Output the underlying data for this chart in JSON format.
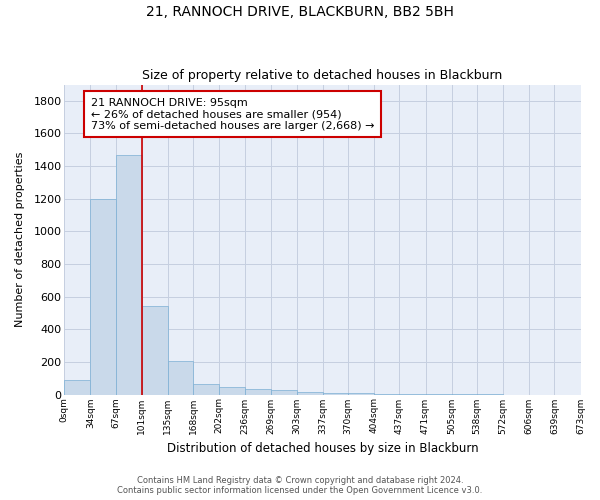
{
  "title1": "21, RANNOCH DRIVE, BLACKBURN, BB2 5BH",
  "title2": "Size of property relative to detached houses in Blackburn",
  "xlabel": "Distribution of detached houses by size in Blackburn",
  "ylabel": "Number of detached properties",
  "footer1": "Contains HM Land Registry data © Crown copyright and database right 2024.",
  "footer2": "Contains public sector information licensed under the Open Government Licence v3.0.",
  "bar_edges": [
    0,
    34,
    67,
    101,
    135,
    168,
    202,
    236,
    269,
    303,
    337,
    370,
    404,
    437,
    471,
    505,
    538,
    572,
    606,
    639,
    673
  ],
  "bar_heights": [
    90,
    1200,
    1470,
    540,
    205,
    65,
    47,
    36,
    28,
    15,
    10,
    8,
    5,
    3,
    2,
    1,
    1,
    0,
    0,
    0
  ],
  "bar_color": "#c9d9ea",
  "bar_edgecolor": "#7bafd4",
  "grid_color": "#c5cfe0",
  "bg_color": "#e8eef8",
  "vline_x": 101,
  "vline_color": "#cc0000",
  "annotation_text": "21 RANNOCH DRIVE: 95sqm\n← 26% of detached houses are smaller (954)\n73% of semi-detached houses are larger (2,668) →",
  "annotation_box_color": "#cc0000",
  "ylim": [
    0,
    1900
  ],
  "yticks": [
    0,
    200,
    400,
    600,
    800,
    1000,
    1200,
    1400,
    1600,
    1800
  ],
  "tick_labels": [
    "0sqm",
    "34sqm",
    "67sqm",
    "101sqm",
    "135sqm",
    "168sqm",
    "202sqm",
    "236sqm",
    "269sqm",
    "303sqm",
    "337sqm",
    "370sqm",
    "404sqm",
    "437sqm",
    "471sqm",
    "505sqm",
    "538sqm",
    "572sqm",
    "606sqm",
    "639sqm",
    "673sqm"
  ]
}
